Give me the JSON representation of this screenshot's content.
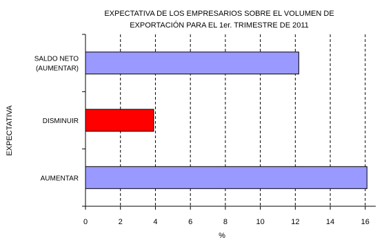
{
  "chart_data": {
    "type": "bar",
    "orientation": "horizontal",
    "title": [
      "EXPECTATIVA DE LOS EMPRESARIOS SOBRE EL VOLUMEN DE",
      "EXPORTACIÓN PARA EL 1er.  TRIMESTRE DE 2011"
    ],
    "xlabel": "%",
    "ylabel": "EXPECTATIVA",
    "categories": [
      [
        "SALDO NETO",
        "(AUMENTAR)"
      ],
      [
        "DISMINUIR"
      ],
      [
        "AUMENTAR"
      ]
    ],
    "values": [
      12.2,
      3.9,
      16.1
    ],
    "colors": [
      "#9999ff",
      "#ff0000",
      "#9999ff"
    ],
    "xlim": [
      0,
      16.6
    ],
    "xticks": [
      0,
      2,
      4,
      6,
      8,
      10,
      12,
      14,
      16
    ],
    "grid": "vertical-dashed",
    "legend": "none"
  }
}
